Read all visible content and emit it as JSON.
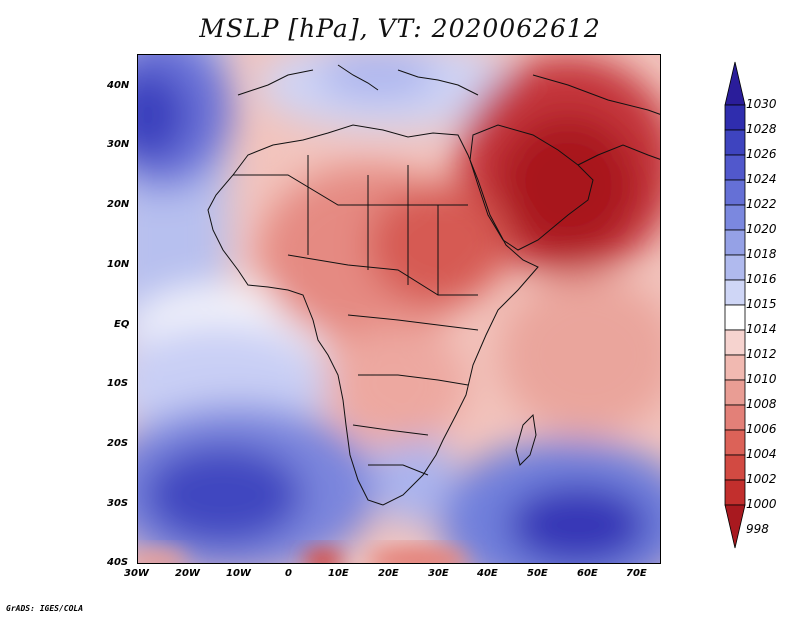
{
  "title": "MSLP [hPa], VT: 2020062612",
  "footer": "GrADS: IGES/COLA",
  "lat_labels": [
    "40N",
    "30N",
    "20N",
    "10N",
    "EQ",
    "10S",
    "20S",
    "30S",
    "40S"
  ],
  "lon_labels": [
    "30W",
    "20W",
    "10W",
    "0",
    "10E",
    "20E",
    "30E",
    "40E",
    "50E",
    "60E",
    "70E"
  ],
  "colorbar": {
    "levels": [
      "1030",
      "1028",
      "1026",
      "1024",
      "1022",
      "1020",
      "1018",
      "1016",
      "1015",
      "1014",
      "1012",
      "1010",
      "1008",
      "1006",
      "1004",
      "1002",
      "1000",
      "998"
    ],
    "colors": [
      "#2a1d9a",
      "#2f2dae",
      "#3e44bf",
      "#5158cc",
      "#6570d6",
      "#7b88df",
      "#95a1e6",
      "#b0baee",
      "#cfd6f6",
      "#ffffff",
      "#f6d3cf",
      "#f1b9b1",
      "#e99d94",
      "#e38078",
      "#dc6258",
      "#d24a42",
      "#c22f2d",
      "#a8191f"
    ]
  },
  "map": {
    "region": "Africa and Middle East",
    "variable": "Mean sea level pressure"
  }
}
